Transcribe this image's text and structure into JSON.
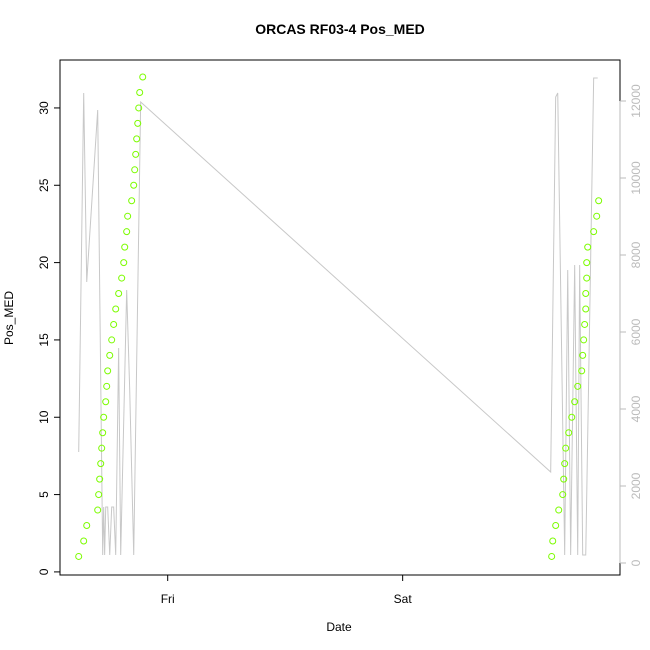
{
  "chart_data": {
    "type": "combo",
    "title": "ORCAS RF03-4 Pos_MED",
    "x_label": "Date",
    "y_label": "Pos_MED",
    "xlim": [
      13,
      70.2
    ],
    "xticks": [
      {
        "value": 24,
        "label": "Fri"
      },
      {
        "value": 48,
        "label": "Sat"
      }
    ],
    "ylim": [
      -0.2,
      33.1
    ],
    "yticks": [
      0,
      5,
      10,
      15,
      20,
      25,
      30
    ],
    "y2lim": [
      -312,
      13065
    ],
    "y2ticks": [
      0,
      2000,
      4000,
      6000,
      8000,
      10000,
      12000
    ],
    "series": [
      {
        "type": "scatter",
        "color": "#7CFC00",
        "x": [
          14.91,
          15.42,
          15.73,
          16.85,
          16.95,
          17.05,
          17.16,
          17.26,
          17.36,
          17.46,
          17.67,
          17.77,
          17.87,
          18.08,
          18.28,
          18.48,
          18.69,
          18.99,
          19.3,
          19.51,
          19.61,
          19.81,
          19.91,
          20.32,
          20.53,
          20.63,
          20.73,
          20.83,
          20.94,
          21.04,
          21.14,
          21.45,
          63.22,
          63.33,
          63.63,
          63.94,
          64.35,
          64.45,
          64.55,
          64.65,
          64.96,
          65.27,
          65.57,
          65.88,
          66.29,
          66.39,
          66.49,
          66.59,
          66.7,
          66.7,
          66.8,
          66.8,
          66.9,
          67.51,
          67.82,
          68.02
        ],
        "values": [
          1,
          2,
          3,
          4,
          5,
          6,
          7,
          8,
          9,
          10,
          11,
          12,
          13,
          14,
          15,
          16,
          17,
          18,
          19,
          20,
          21,
          22,
          23,
          24,
          25,
          26,
          27,
          28,
          29,
          30,
          31,
          32,
          1,
          2,
          3,
          4,
          5,
          6,
          7,
          8,
          9,
          10,
          11,
          12,
          13,
          14,
          15,
          16,
          17,
          18,
          19,
          20,
          21,
          22,
          23,
          24
        ]
      },
      {
        "type": "line",
        "axis": "y2",
        "color": "#c8c8c8",
        "x": [
          14.91,
          15.42,
          15.73,
          16.85,
          17.36,
          17.46,
          17.56,
          17.67,
          17.87,
          18.08,
          18.28,
          18.48,
          18.69,
          18.99,
          19.2,
          19.81,
          20.12,
          20.53,
          21.24,
          63.12,
          63.63,
          63.84,
          64.55,
          64.86,
          65.16,
          65.57,
          65.88,
          66.08,
          66.39,
          66.7,
          67.51,
          67.92
        ],
        "values": [
          2883,
          12208,
          7299,
          11766,
          208,
          1455,
          208,
          1455,
          1455,
          208,
          1455,
          1455,
          208,
          5584,
          208,
          7091,
          4494,
          208,
          11974,
          2364,
          12104,
          12208,
          208,
          7610,
          208,
          7740,
          208,
          7740,
          208,
          208,
          12597,
          12597
        ]
      }
    ]
  }
}
